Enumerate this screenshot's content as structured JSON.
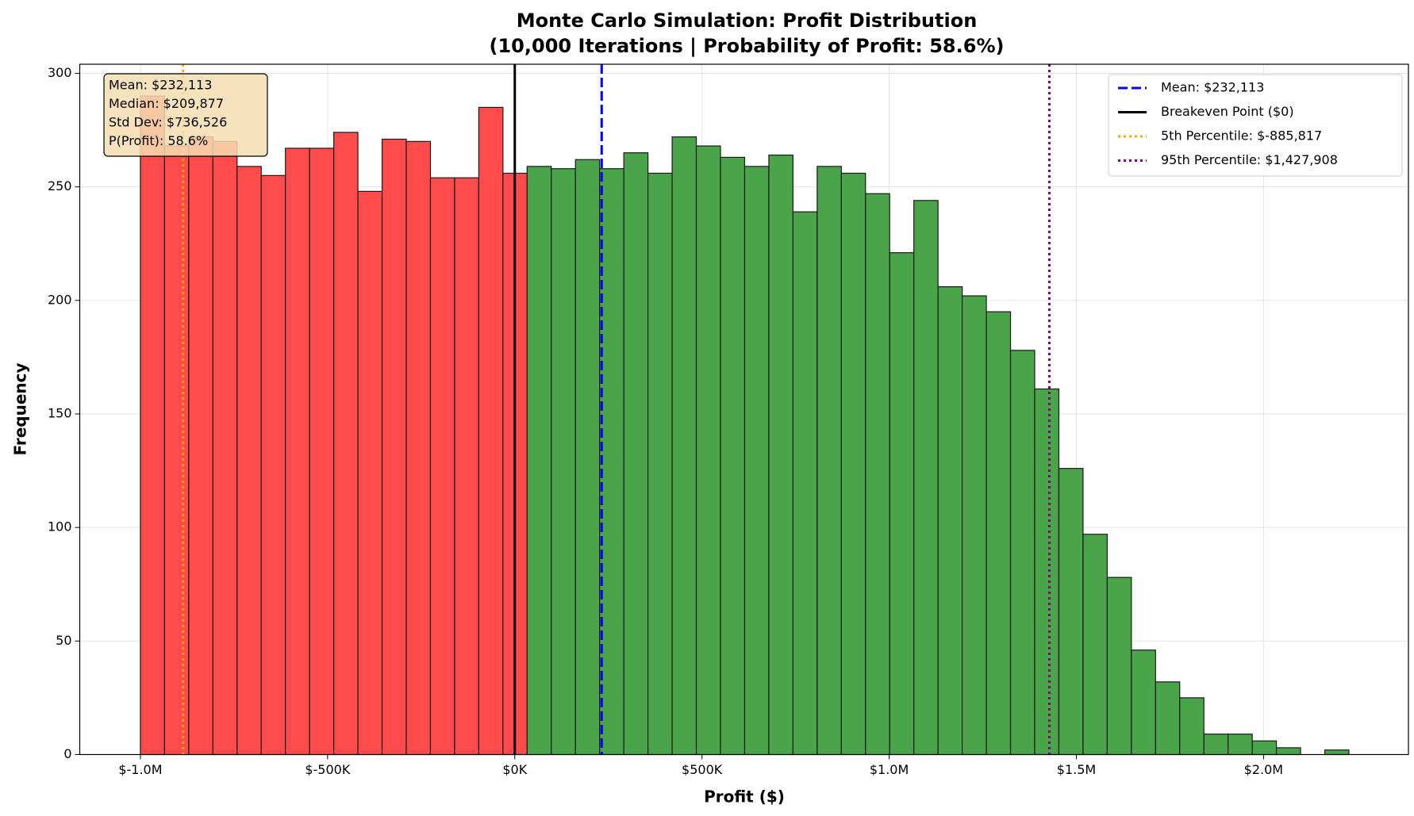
{
  "chart_data": {
    "type": "histogram",
    "title": [
      "Monte Carlo Simulation: Profit Distribution",
      "(10,000 Iterations | Probability of Profit: 58.6%)"
    ],
    "x_label": "Profit ($)",
    "y_label": "Frequency",
    "bins": [
      -1000000,
      -935440,
      -870880,
      -806320,
      -741760,
      -677200,
      -612640,
      -548080,
      -483520,
      -418960,
      -354400,
      -289840,
      -225280,
      -160720,
      -96160,
      -31600,
      32960,
      97520,
      162080,
      226640,
      291200,
      355760,
      420320,
      484880,
      549440,
      614000,
      678560,
      743120,
      807680,
      872240,
      936800,
      1001360,
      1065920,
      1130480,
      1195040,
      1259600,
      1324160,
      1388720,
      1453280,
      1517840,
      1582400,
      1646960,
      1711520,
      1776080,
      1840640,
      1905200,
      1969760,
      2034320,
      2098880,
      2163440,
      2228000
    ],
    "values": [
      290,
      268,
      272,
      270,
      259,
      255,
      267,
      267,
      274,
      248,
      271,
      270,
      254,
      254,
      285,
      256,
      259,
      258,
      262,
      258,
      265,
      256,
      272,
      268,
      263,
      259,
      264,
      239,
      259,
      256,
      247,
      221,
      244,
      206,
      202,
      195,
      178,
      161,
      126,
      97,
      78,
      46,
      32,
      25,
      9,
      9,
      6,
      3,
      0,
      2
    ],
    "colors": {
      "loss": "#ff4b4b",
      "profit": "#4aa54a"
    },
    "split_line": 1,
    "lines": [
      {
        "label": "Mean: $232,113",
        "value": 232113,
        "color": "#0000ff",
        "style": "dashed"
      },
      {
        "label": "Breakeven Point ($0)",
        "value": 0,
        "color": "#000000",
        "style": "solid"
      },
      {
        "label": "5th Percentile: $-885,817",
        "value": -885817,
        "color": "#ffa500",
        "style": "dotted"
      },
      {
        "label": "95th Percentile: $1,427,908",
        "value": 1427908,
        "color": "#800080",
        "style": "dotted"
      }
    ],
    "stats_box": [
      "Mean: $232,113",
      "Median: $209,877",
      "Std Dev: $736,526",
      "P(Profit): 58.6%"
    ],
    "xlim": [
      -1162000,
      2387000
    ],
    "ylim": [
      0,
      304
    ],
    "xticks": [
      {
        "value": -1000000,
        "label": "$-1.0M"
      },
      {
        "value": -500000,
        "label": "$-500K"
      },
      {
        "value": 0,
        "label": "$0K"
      },
      {
        "value": 500000,
        "label": "$500K"
      },
      {
        "value": 1000000,
        "label": "$1.0M"
      },
      {
        "value": 1500000,
        "label": "$1.5M"
      },
      {
        "value": 2000000,
        "label": "$2.0M"
      }
    ],
    "yticks": [
      0,
      50,
      100,
      150,
      200,
      250,
      300
    ],
    "grid": true,
    "legend": "upper right"
  }
}
